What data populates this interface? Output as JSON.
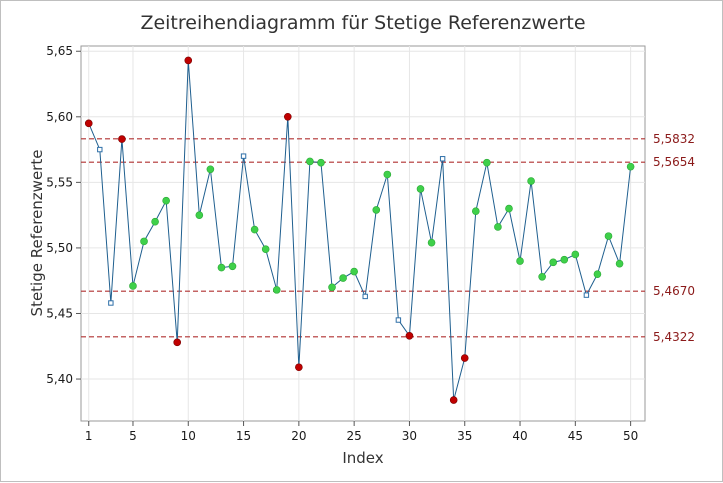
{
  "chart_data": {
    "type": "line",
    "title": "Zeitreihendiagramm für Stetige Referenzwerte",
    "xlabel": "Index",
    "ylabel": "Stetige Referenzwerte",
    "xlim": [
      0.3,
      51.3
    ],
    "ylim": [
      5.368,
      5.654
    ],
    "x_ticks": [
      1,
      5,
      10,
      15,
      20,
      25,
      30,
      35,
      40,
      45,
      50
    ],
    "x_tick_labels": [
      "1",
      "5",
      "10",
      "15",
      "20",
      "25",
      "30",
      "35",
      "40",
      "45",
      "50"
    ],
    "y_ticks": [
      5.4,
      5.45,
      5.5,
      5.55,
      5.6,
      5.65
    ],
    "y_tick_labels": [
      "5,40",
      "5,45",
      "5,50",
      "5,55",
      "5,60",
      "5,65"
    ],
    "grid": true,
    "colors": {
      "line": "#1f5f8f",
      "marker_red": "#c00000",
      "marker_green": "#3fd04a",
      "marker_blue": "#2e6fa8",
      "reference_line": "#b03030",
      "reference_label": "#8b1a1a"
    },
    "reference_lines": [
      {
        "value": 5.5832,
        "label": "5,5832"
      },
      {
        "value": 5.5654,
        "label": "5,5654"
      },
      {
        "value": 5.467,
        "label": "5,4670"
      },
      {
        "value": 5.4322,
        "label": "5,4322"
      }
    ],
    "series": [
      {
        "x": [
          1,
          2,
          3,
          4,
          5,
          6,
          7,
          8,
          9,
          10,
          11,
          12,
          13,
          14,
          15,
          16,
          17,
          18,
          19,
          20,
          21,
          22,
          23,
          24,
          25,
          26,
          27,
          28,
          29,
          30,
          31,
          32,
          33,
          34,
          35,
          36,
          37,
          38,
          39,
          40,
          41,
          42,
          43,
          44,
          45,
          46,
          47,
          48,
          49,
          50
        ],
        "y": [
          5.595,
          5.575,
          5.458,
          5.583,
          5.471,
          5.505,
          5.52,
          5.536,
          5.428,
          5.643,
          5.525,
          5.56,
          5.485,
          5.486,
          5.57,
          5.514,
          5.499,
          5.468,
          5.6,
          5.409,
          5.566,
          5.565,
          5.47,
          5.477,
          5.482,
          5.463,
          5.529,
          5.556,
          5.445,
          5.433,
          5.545,
          5.504,
          5.568,
          5.384,
          5.416,
          5.528,
          5.565,
          5.516,
          5.53,
          5.49,
          5.551,
          5.478,
          5.489,
          5.491,
          5.495,
          5.464,
          5.48,
          5.509,
          5.488,
          5.562
        ],
        "marker_class": [
          "red",
          "blue",
          "blue",
          "red",
          "green",
          "green",
          "green",
          "green",
          "red",
          "red",
          "green",
          "green",
          "green",
          "green",
          "blue",
          "green",
          "green",
          "green",
          "red",
          "red",
          "green",
          "green",
          "green",
          "green",
          "green",
          "blue",
          "green",
          "green",
          "blue",
          "red",
          "green",
          "green",
          "blue",
          "red",
          "red",
          "green",
          "green",
          "green",
          "green",
          "green",
          "green",
          "green",
          "green",
          "green",
          "green",
          "blue",
          "green",
          "green",
          "green",
          "green"
        ]
      }
    ]
  }
}
